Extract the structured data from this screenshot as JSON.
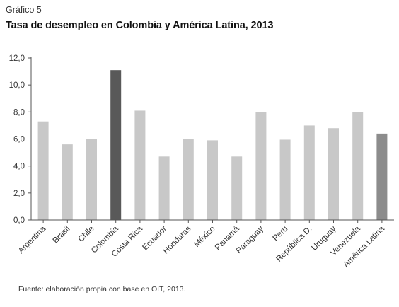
{
  "figure_label": "Gráfico 5",
  "title": "Tasa de desempleo en Colombia y América Latina, 2013",
  "source": "Fuente: elaboración propia con base en OIT, 2013.",
  "colors": {
    "default_bar": "#c8c8c8",
    "colombia_bar": "#595959",
    "america_latina_bar": "#8c8c8c",
    "axis": "#555555"
  },
  "chart_data": {
    "type": "bar",
    "categories": [
      "Argentina",
      "Brasil",
      "Chile",
      "Colombia",
      "Costa Rica",
      "Ecuador",
      "Honduras",
      "México",
      "Panamá",
      "Paraguay",
      "Peru",
      "República D.",
      "Uruguay",
      "Venezuela",
      "América Latina"
    ],
    "values": [
      7.3,
      5.6,
      6.0,
      11.1,
      8.1,
      4.7,
      6.0,
      5.9,
      4.7,
      8.0,
      5.95,
      7.0,
      6.8,
      8.0,
      6.4
    ],
    "highlight": {
      "Colombia": "colombia_bar",
      "América Latina": "america_latina_bar"
    },
    "title": "Tasa de desempleo en Colombia y América Latina, 2013",
    "xlabel": "",
    "ylabel": "",
    "ylim": [
      0,
      12
    ],
    "yticks": [
      "0,0",
      "2,0",
      "4,0",
      "6,0",
      "8,0",
      "10,0",
      "12,0"
    ],
    "grid": false,
    "legend": "none"
  }
}
